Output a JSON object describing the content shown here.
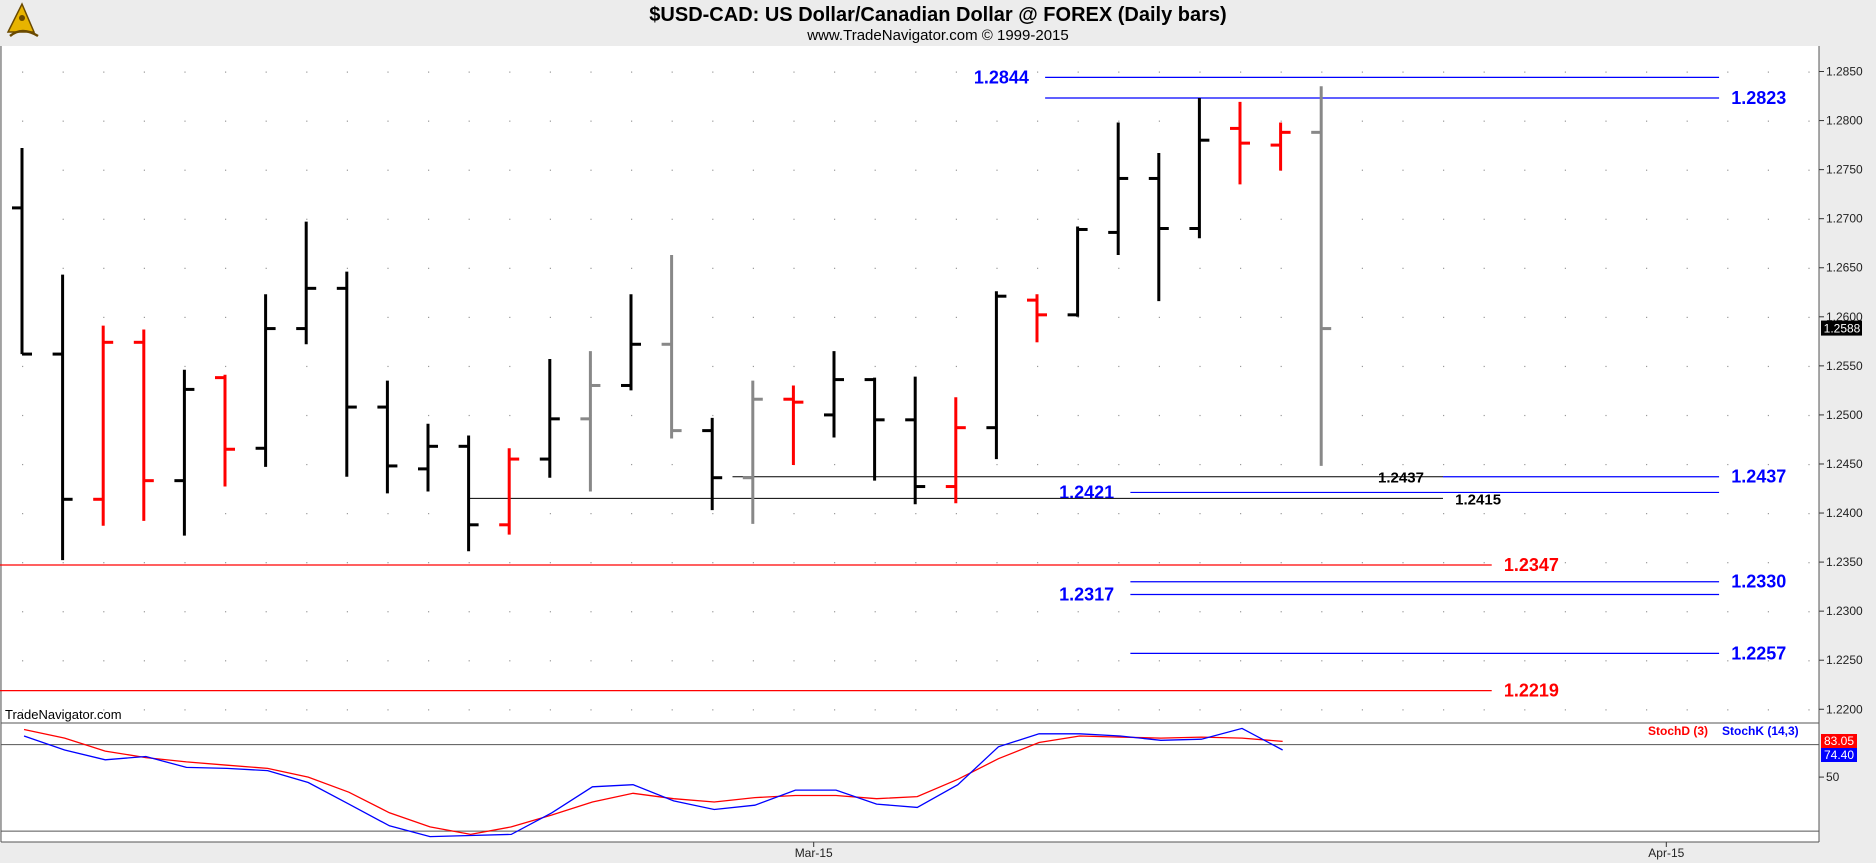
{
  "chart_data": {
    "type": "ohlc",
    "title": "$USD-CAD:  US Dollar/Canadian Dollar @ FOREX  (Daily bars)",
    "subtitle": "www.TradeNavigator.com © 1999-2015",
    "watermark": "TradeNavigator.com",
    "price_axis": {
      "ticks": [
        "1.2850",
        "1.2800",
        "1.2750",
        "1.2700",
        "1.2650",
        "1.2600",
        "1.2550",
        "1.2500",
        "1.2450",
        "1.2400",
        "1.2350",
        "1.2300",
        "1.2250",
        "1.2200"
      ],
      "range": [
        1.2186,
        1.2876
      ],
      "last_price": "1.2588"
    },
    "date_axis": {
      "labels": [
        {
          "text": "Mar-15",
          "bar": 19.5
        },
        {
          "text": "Apr-15",
          "bar": 40.5
        }
      ]
    },
    "colors": {
      "up": "#000000",
      "down": "#ff0000",
      "neutral": "#888888",
      "blue": "#0000ff",
      "red": "#ff0000"
    },
    "bars": [
      {
        "o": 1.2711,
        "h": 1.2772,
        "l": 1.2562,
        "c": 1.2562,
        "color": "#000000"
      },
      {
        "o": 1.2562,
        "h": 1.2643,
        "l": 1.2352,
        "c": 1.2414,
        "color": "#000000"
      },
      {
        "o": 1.2414,
        "h": 1.2591,
        "l": 1.2387,
        "c": 1.2574,
        "color": "#ff0000"
      },
      {
        "o": 1.2574,
        "h": 1.2587,
        "l": 1.2392,
        "c": 1.2433,
        "color": "#ff0000"
      },
      {
        "o": 1.2433,
        "h": 1.2546,
        "l": 1.2377,
        "c": 1.2526,
        "color": "#000000"
      },
      {
        "o": 1.2538,
        "h": 1.2541,
        "l": 1.2427,
        "c": 1.2465,
        "color": "#ff0000"
      },
      {
        "o": 1.2466,
        "h": 1.2623,
        "l": 1.2447,
        "c": 1.2588,
        "color": "#000000"
      },
      {
        "o": 1.2588,
        "h": 1.2697,
        "l": 1.2572,
        "c": 1.2629,
        "color": "#000000"
      },
      {
        "o": 1.2629,
        "h": 1.2646,
        "l": 1.2437,
        "c": 1.2508,
        "color": "#000000"
      },
      {
        "o": 1.2508,
        "h": 1.2535,
        "l": 1.242,
        "c": 1.2448,
        "color": "#000000"
      },
      {
        "o": 1.2445,
        "h": 1.2491,
        "l": 1.2422,
        "c": 1.2468,
        "color": "#000000"
      },
      {
        "o": 1.2468,
        "h": 1.2479,
        "l": 1.2361,
        "c": 1.2388,
        "color": "#000000"
      },
      {
        "o": 1.2388,
        "h": 1.2466,
        "l": 1.2378,
        "c": 1.2455,
        "color": "#ff0000"
      },
      {
        "o": 1.2455,
        "h": 1.2557,
        "l": 1.2436,
        "c": 1.2496,
        "color": "#000000"
      },
      {
        "o": 1.2496,
        "h": 1.2565,
        "l": 1.2422,
        "c": 1.253,
        "color": "#888888"
      },
      {
        "o": 1.253,
        "h": 1.2623,
        "l": 1.2525,
        "c": 1.2572,
        "color": "#000000"
      },
      {
        "o": 1.2572,
        "h": 1.2663,
        "l": 1.2476,
        "c": 1.2484,
        "color": "#888888"
      },
      {
        "o": 1.2484,
        "h": 1.2497,
        "l": 1.2403,
        "c": 1.2436,
        "color": "#000000"
      },
      {
        "o": 1.2436,
        "h": 1.2535,
        "l": 1.2389,
        "c": 1.2516,
        "color": "#888888"
      },
      {
        "o": 1.2516,
        "h": 1.253,
        "l": 1.2449,
        "c": 1.2513,
        "color": "#ff0000"
      },
      {
        "o": 1.25,
        "h": 1.2565,
        "l": 1.2477,
        "c": 1.2536,
        "color": "#000000"
      },
      {
        "o": 1.2536,
        "h": 1.2538,
        "l": 1.2433,
        "c": 1.2495,
        "color": "#000000"
      },
      {
        "o": 1.2495,
        "h": 1.2539,
        "l": 1.2409,
        "c": 1.2427,
        "color": "#000000"
      },
      {
        "o": 1.2427,
        "h": 1.2518,
        "l": 1.241,
        "c": 1.2487,
        "color": "#ff0000"
      },
      {
        "o": 1.2487,
        "h": 1.2626,
        "l": 1.2455,
        "c": 1.2621,
        "color": "#000000"
      },
      {
        "o": 1.2617,
        "h": 1.2623,
        "l": 1.2574,
        "c": 1.2602,
        "color": "#ff0000"
      },
      {
        "o": 1.2602,
        "h": 1.2692,
        "l": 1.26,
        "c": 1.2689,
        "color": "#000000"
      },
      {
        "o": 1.2686,
        "h": 1.2798,
        "l": 1.2663,
        "c": 1.2741,
        "color": "#000000"
      },
      {
        "o": 1.2741,
        "h": 1.2767,
        "l": 1.2616,
        "c": 1.269,
        "color": "#000000"
      },
      {
        "o": 1.269,
        "h": 1.2823,
        "l": 1.268,
        "c": 1.278,
        "color": "#000000"
      },
      {
        "o": 1.2792,
        "h": 1.2819,
        "l": 1.2735,
        "c": 1.2777,
        "color": "#ff0000"
      },
      {
        "o": 1.2775,
        "h": 1.2798,
        "l": 1.2749,
        "c": 1.2788,
        "color": "#ff0000"
      },
      {
        "o": 1.2788,
        "h": 1.2835,
        "l": 1.2448,
        "c": 1.2588,
        "color": "#888888"
      }
    ],
    "levels": [
      {
        "label": "1.2844",
        "value": 1.2844,
        "color": "#0000ff",
        "from_bar": 25.2,
        "to_bar": 41.8,
        "label_side": "left",
        "label_bar": 24.8
      },
      {
        "label": "1.2823",
        "value": 1.2823,
        "color": "#0000ff",
        "from_bar": 25.2,
        "to_bar": 41.8,
        "label_side": "right",
        "label_bar": 42.1
      },
      {
        "label": "1.2437",
        "value": 1.2437,
        "color": "#0000ff",
        "from_bar": 35.0,
        "to_bar": 41.8,
        "label_side": "right",
        "label_bar": 42.1
      },
      {
        "label": "1.2421",
        "value": 1.2421,
        "color": "#0000ff",
        "from_bar": 27.3,
        "to_bar": 41.8,
        "label_side": "left",
        "label_bar": 26.9
      },
      {
        "label": "1.2330",
        "value": 1.233,
        "color": "#0000ff",
        "from_bar": 27.3,
        "to_bar": 41.8,
        "label_side": "right",
        "label_bar": 42.1
      },
      {
        "label": "1.2317",
        "value": 1.2317,
        "color": "#0000ff",
        "from_bar": 27.3,
        "to_bar": 41.8,
        "label_side": "left",
        "label_bar": 26.9
      },
      {
        "label": "1.2257",
        "value": 1.2257,
        "color": "#0000ff",
        "from_bar": 27.3,
        "to_bar": 41.8,
        "label_side": "right",
        "label_bar": 42.1
      },
      {
        "label": "1.2347",
        "value": 1.2347,
        "color": "#ff0000",
        "from_bar": -0.6,
        "to_bar": 36.2,
        "label_side": "right",
        "label_bar": 36.5
      },
      {
        "label": "1.2219",
        "value": 1.2219,
        "color": "#ff0000",
        "from_bar": -0.6,
        "to_bar": 36.2,
        "label_side": "right",
        "label_bar": 36.5
      }
    ],
    "black_lines": [
      {
        "label": "1.2437",
        "value": 1.2437,
        "from_bar": 17.5,
        "to_bar": 35.0,
        "label_bar": 33.4
      },
      {
        "label": "1.2415",
        "value": 1.2415,
        "from_bar": 11.0,
        "to_bar": 35.0,
        "label_bar": 35.3
      }
    ],
    "stochastic": {
      "legend_d": "StochD (3)",
      "legend_k": "StochK (14,3)",
      "ticks": [
        "50"
      ],
      "range": [
        -10,
        100
      ],
      "ref_line": 80,
      "d_value": "83.05",
      "k_value": "74.40",
      "d_color": "#ff0000",
      "k_color": "#0000ff",
      "k": [
        88,
        75,
        66,
        69,
        59,
        58,
        56,
        45,
        25,
        5,
        -5,
        -4,
        -3,
        17,
        41,
        43,
        28,
        20,
        24,
        38,
        38,
        25,
        22,
        43,
        78,
        90,
        90,
        88,
        84,
        85,
        95,
        75
      ],
      "d": [
        94,
        86,
        74,
        68,
        64,
        61,
        58,
        50,
        36,
        17,
        4,
        -3,
        4,
        15,
        27,
        35,
        30,
        27,
        31,
        33,
        33,
        30,
        32,
        48,
        67,
        82,
        88,
        87,
        86,
        87,
        86,
        83
      ]
    }
  }
}
